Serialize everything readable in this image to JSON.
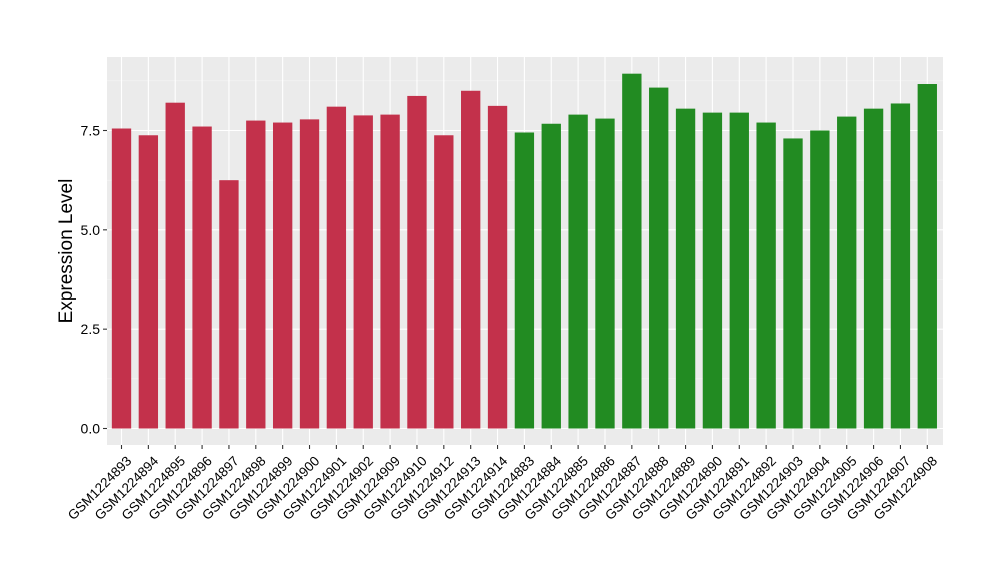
{
  "chart_data": {
    "type": "bar",
    "title": "",
    "xlabel": "",
    "ylabel": "Expression Level",
    "ylim": [
      0,
      9.0
    ],
    "yticks": [
      0.0,
      2.5,
      5.0,
      7.5
    ],
    "ytick_labels": [
      "0.0",
      "2.5",
      "5.0",
      "7.5"
    ],
    "grid": true,
    "legend": "none",
    "categories": [
      "GSM1224893",
      "GSM1224894",
      "GSM1224895",
      "GSM1224896",
      "GSM1224897",
      "GSM1224898",
      "GSM1224899",
      "GSM1224900",
      "GSM1224901",
      "GSM1224902",
      "GSM1224909",
      "GSM1224910",
      "GSM1224912",
      "GSM1224913",
      "GSM1224914",
      "GSM1224883",
      "GSM1224884",
      "GSM1224885",
      "GSM1224886",
      "GSM1224887",
      "GSM1224888",
      "GSM1224889",
      "GSM1224890",
      "GSM1224891",
      "GSM1224892",
      "GSM1224903",
      "GSM1224904",
      "GSM1224905",
      "GSM1224906",
      "GSM1224907",
      "GSM1224908"
    ],
    "values": [
      7.55,
      7.38,
      8.2,
      7.6,
      6.25,
      7.75,
      7.7,
      7.78,
      8.1,
      7.88,
      7.9,
      8.37,
      7.38,
      8.5,
      8.12,
      7.45,
      7.67,
      7.9,
      7.8,
      8.93,
      8.58,
      8.05,
      7.95,
      7.95,
      7.7,
      7.3,
      7.5,
      7.85,
      8.05,
      8.18,
      8.67
    ],
    "groups": [
      "red",
      "red",
      "red",
      "red",
      "red",
      "red",
      "red",
      "red",
      "red",
      "red",
      "red",
      "red",
      "red",
      "red",
      "red",
      "green",
      "green",
      "green",
      "green",
      "green",
      "green",
      "green",
      "green",
      "green",
      "green",
      "green",
      "green",
      "green",
      "green",
      "green",
      "green"
    ],
    "colors": {
      "red": "#C3314B",
      "green": "#228B22",
      "panel_background": "#EBEBEB",
      "grid": "#FFFFFF"
    }
  }
}
